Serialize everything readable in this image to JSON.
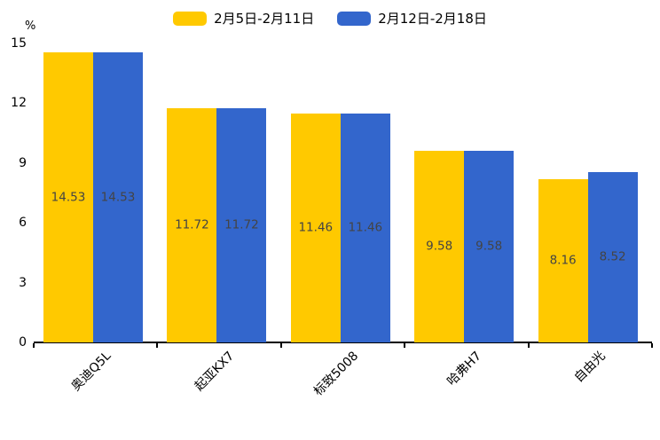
{
  "chart_data": {
    "type": "bar",
    "title": "",
    "unit_label": "%",
    "categories": [
      "奥迪Q5L",
      "起亚KX7",
      "标致5008",
      "哈弗H7",
      "自由光"
    ],
    "series": [
      {
        "name": "2月5日-2月11日",
        "color": "#FFC900",
        "values": [
          14.53,
          11.72,
          11.46,
          9.58,
          8.16
        ]
      },
      {
        "name": "2月12日-2月18日",
        "color": "#3366CC",
        "values": [
          14.53,
          11.72,
          11.46,
          9.58,
          8.52
        ]
      }
    ],
    "value_labels": [
      "14.53",
      "11.72",
      "11.46",
      "9.58",
      "8.16",
      "14.53",
      "11.72",
      "11.46",
      "9.58",
      "8.52"
    ],
    "ylim": [
      0,
      15
    ],
    "yticks": [
      0,
      3,
      6,
      9,
      12,
      15
    ],
    "ylabel": "%",
    "xlabel": "",
    "grid": false,
    "legend_position": "top-center",
    "value_label_position": "inside-middle",
    "value_label_color": "#444444",
    "axis_color": "#000000",
    "background_color": "#ffffff"
  }
}
